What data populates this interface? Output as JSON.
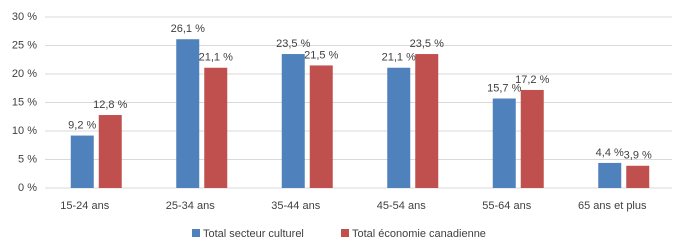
{
  "chart_data": {
    "type": "bar",
    "categories": [
      "15-24 ans",
      "25-34 ans",
      "35-44 ans",
      "45-54 ans",
      "55-64 ans",
      "65 ans et plus"
    ],
    "series": [
      {
        "name": "Total secteur culturel",
        "color": "#4f81bd",
        "values": [
          9.2,
          26.1,
          23.5,
          21.1,
          15.7,
          4.4
        ],
        "value_labels": [
          "9,2 %",
          "26,1 %",
          "23,5 %",
          "21,1 %",
          "15,7 %",
          "4,4 %"
        ]
      },
      {
        "name": "Total économie canadienne",
        "color": "#c0504d",
        "values": [
          12.8,
          21.1,
          21.5,
          23.5,
          17.2,
          3.9
        ],
        "value_labels": [
          "12,8 %",
          "21,1 %",
          "21,5 %",
          "23,5 %",
          "17,2 %",
          "3,9 %"
        ]
      }
    ],
    "ylim": [
      0,
      30
    ],
    "yticks": [
      {
        "value": 0,
        "label": "0 %"
      },
      {
        "value": 5,
        "label": "5 %"
      },
      {
        "value": 10,
        "label": "10 %"
      },
      {
        "value": 15,
        "label": "15 %"
      },
      {
        "value": 20,
        "label": "20 %"
      },
      {
        "value": 25,
        "label": "25 %"
      },
      {
        "value": 30,
        "label": "30 %"
      }
    ],
    "grid": true,
    "legend": "bottom"
  }
}
